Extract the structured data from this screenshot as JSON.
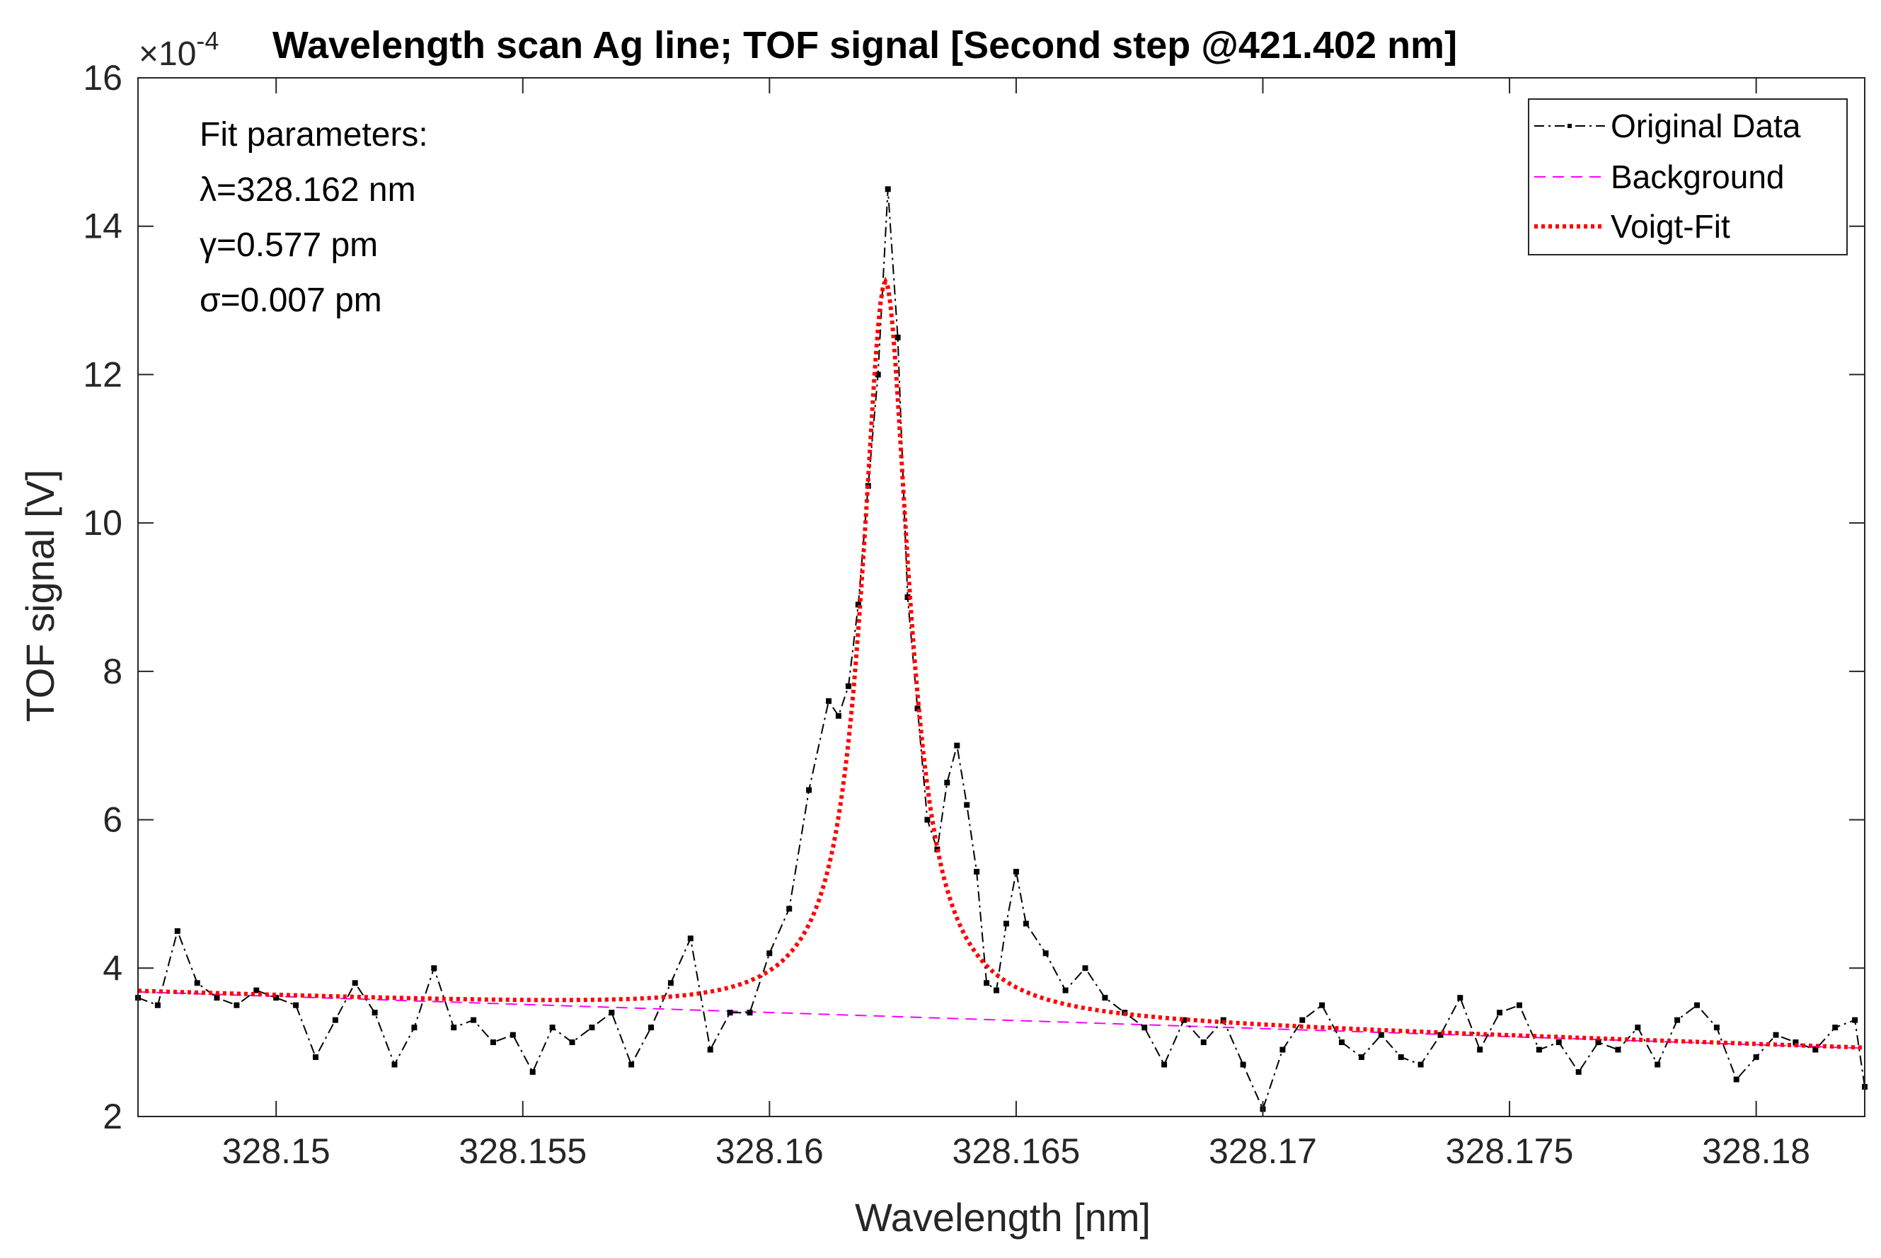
{
  "chart_data": {
    "type": "line",
    "title": "Wavelength scan Ag line; TOF signal [Second step @421.402 nm]",
    "xlabel": "Wavelength [nm]",
    "ylabel": "TOF signal [V]",
    "y_multiplier_base": "×10",
    "y_multiplier_exp": "-4",
    "xlim": [
      328.1472,
      328.1822
    ],
    "ylim": [
      2,
      16
    ],
    "xticks": [
      328.15,
      328.155,
      328.16,
      328.165,
      328.17,
      328.175,
      328.18
    ],
    "xtick_labels": [
      "328.15",
      "328.155",
      "328.16",
      "328.165",
      "328.17",
      "328.175",
      "328.18"
    ],
    "yticks": [
      2,
      4,
      6,
      8,
      10,
      12,
      14,
      16
    ],
    "ytick_labels": [
      "2",
      "4",
      "6",
      "8",
      "10",
      "12",
      "14",
      "16"
    ],
    "grid": false,
    "legend_position": "top-right",
    "annotations": {
      "heading": "Fit parameters:",
      "lambda": "λ=328.162 nm",
      "gamma": "γ=0.577 pm",
      "sigma": "σ=0.007 pm"
    },
    "series": [
      {
        "name": "Original Data",
        "color": "#000000",
        "style": "dash-dot with point markers",
        "x": [
          328.1472,
          328.1476,
          328.148,
          328.1484,
          328.1488,
          328.1492,
          328.1496,
          328.15,
          328.1504,
          328.1508,
          328.1512,
          328.1516,
          328.152,
          328.1524,
          328.1528,
          328.1532,
          328.1536,
          328.154,
          328.1544,
          328.1548,
          328.1552,
          328.1556,
          328.156,
          328.1564,
          328.1568,
          328.1572,
          328.1576,
          328.158,
          328.1584,
          328.1588,
          328.1592,
          328.1596,
          328.16,
          328.1604,
          328.1608,
          328.1612,
          328.1614,
          328.1616,
          328.1618,
          328.162,
          328.1622,
          328.1624,
          328.1626,
          328.1628,
          328.163,
          328.1632,
          328.1634,
          328.1636,
          328.1638,
          328.164,
          328.1642,
          328.1644,
          328.1646,
          328.1648,
          328.165,
          328.1652,
          328.1656,
          328.166,
          328.1664,
          328.1668,
          328.1672,
          328.1676,
          328.168,
          328.1684,
          328.1688,
          328.1692,
          328.1696,
          328.17,
          328.1704,
          328.1708,
          328.1712,
          328.1716,
          328.172,
          328.1724,
          328.1728,
          328.1732,
          328.1736,
          328.174,
          328.1744,
          328.1748,
          328.1752,
          328.1756,
          328.176,
          328.1764,
          328.1768,
          328.1772,
          328.1776,
          328.178,
          328.1784,
          328.1788,
          328.1792,
          328.1796,
          328.18,
          328.1804,
          328.1808,
          328.1812,
          328.1816,
          328.182,
          328.1822
        ],
        "y": [
          3.6,
          3.5,
          4.5,
          3.8,
          3.6,
          3.5,
          3.7,
          3.6,
          3.5,
          2.8,
          3.3,
          3.8,
          3.4,
          2.7,
          3.2,
          4.0,
          3.2,
          3.3,
          3.0,
          3.1,
          2.6,
          3.2,
          3.0,
          3.2,
          3.4,
          2.7,
          3.2,
          3.8,
          4.4,
          2.9,
          3.4,
          3.4,
          4.2,
          4.8,
          6.4,
          7.6,
          7.4,
          7.8,
          8.9,
          10.5,
          12.0,
          14.5,
          12.5,
          9.0,
          7.5,
          6.0,
          5.6,
          6.5,
          7.0,
          6.2,
          5.3,
          3.8,
          3.7,
          4.6,
          5.3,
          4.6,
          4.2,
          3.7,
          4.0,
          3.6,
          3.4,
          3.2,
          2.7,
          3.3,
          3.0,
          3.3,
          2.7,
          2.1,
          2.9,
          3.3,
          3.5,
          3.0,
          2.8,
          3.1,
          2.8,
          2.7,
          3.1,
          3.6,
          2.9,
          3.4,
          3.5,
          2.9,
          3.0,
          2.6,
          3.0,
          2.9,
          3.2,
          2.7,
          3.3,
          3.5,
          3.2,
          2.5,
          2.8,
          3.1,
          3.0,
          2.9,
          3.2,
          3.3,
          2.4
        ]
      },
      {
        "name": "Background",
        "color": "#ff00ff",
        "style": "dashed",
        "x": [
          328.1472,
          328.1822
        ],
        "y": [
          3.68,
          2.92
        ]
      },
      {
        "name": "Voigt-Fit",
        "color": "#ff0000",
        "style": "dotted thick",
        "model": "lorentzian on linear background",
        "center": 328.16235,
        "amplitude": 9.9,
        "hwhm": 0.000577,
        "x_range": [
          328.1472,
          328.1822
        ]
      }
    ]
  }
}
